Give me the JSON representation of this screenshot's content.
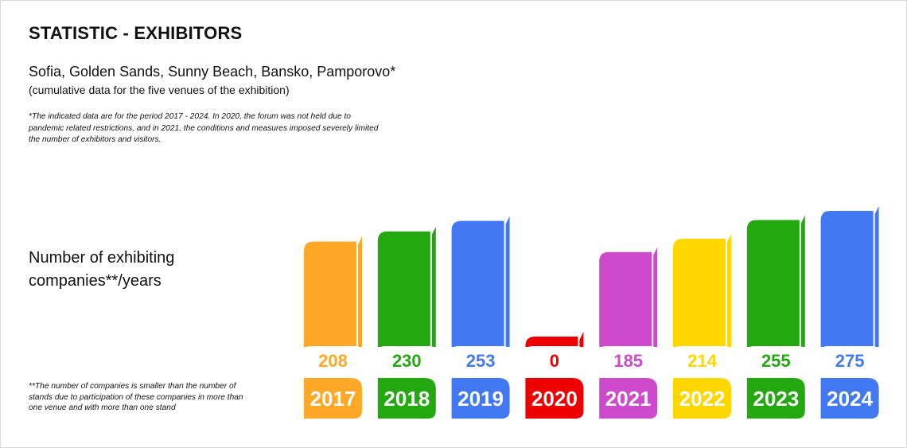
{
  "title": "STATISTIC - EXHIBITORS",
  "venues": "Sofia, Golden Sands, Sunny Beach, Bansko, Pamporovo*",
  "venues_sub": "(cumulative data for the five venues of the exhibition)",
  "note1": "*The indicated data are for the period 2017 - 2024. In 2020, the forum was not held due to pandemic related restrictions, and in 2021, the conditions and measures imposed severely limited the number of exhibitors and visitors.",
  "ylabel": "Number of exhibiting companies**/years",
  "note2": "**The number of companies is smaller than the number of stands due to participation of these companies in more than one venue and with more than one stand",
  "chart_data": {
    "type": "bar",
    "categories": [
      "2017",
      "2018",
      "2019",
      "2020",
      "2021",
      "2022",
      "2023",
      "2024"
    ],
    "values": [
      208,
      230,
      253,
      0,
      185,
      214,
      255,
      275
    ],
    "colors": [
      "#FFA726",
      "#23A80F",
      "#4279F2",
      "#EE0000",
      "#CC4ACB",
      "#FFD600",
      "#23A80F",
      "#4279F2"
    ],
    "ylim": [
      0,
      275
    ]
  }
}
